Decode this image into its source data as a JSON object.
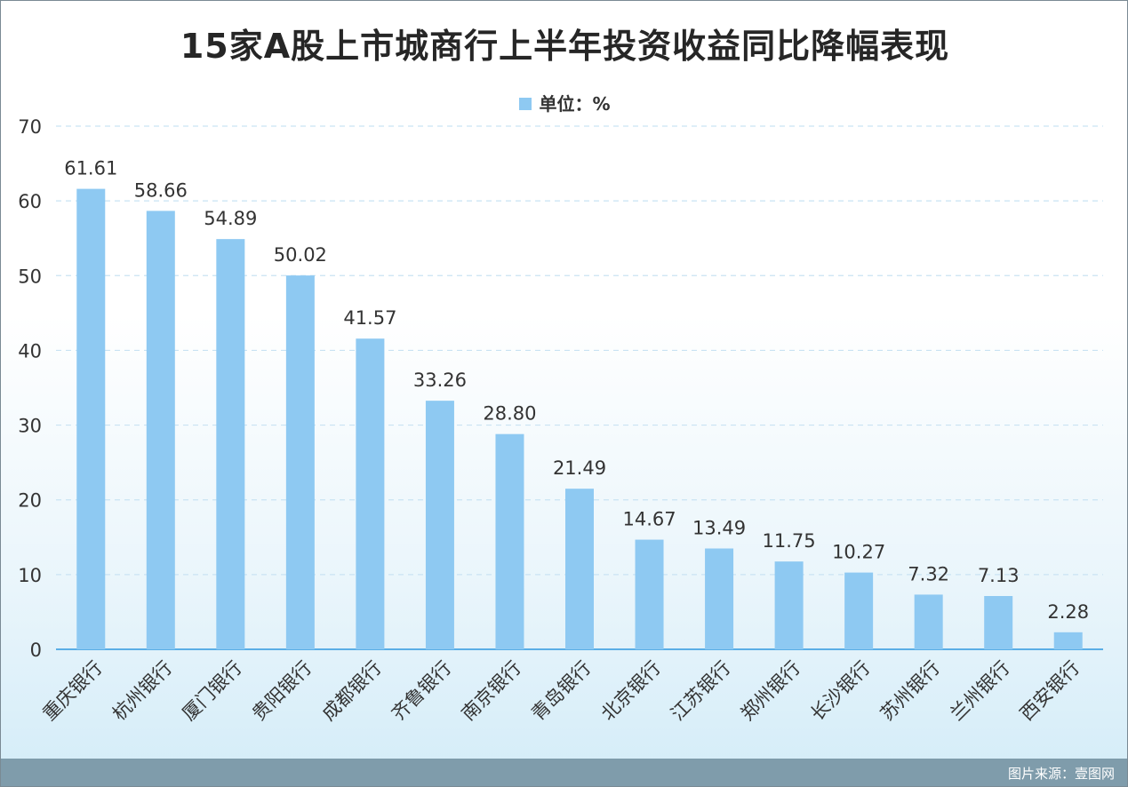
{
  "chart_data": {
    "type": "bar",
    "title": "15家A股上市城商行上半年投资收益同比降幅表现",
    "legend": "单位：%",
    "categories": [
      "重庆银行",
      "杭州银行",
      "厦门银行",
      "贵阳银行",
      "成都银行",
      "齐鲁银行",
      "南京银行",
      "青岛银行",
      "北京银行",
      "江苏银行",
      "郑州银行",
      "长沙银行",
      "苏州银行",
      "兰州银行",
      "西安银行"
    ],
    "values": [
      61.61,
      58.66,
      54.89,
      50.02,
      41.57,
      33.26,
      28.8,
      21.49,
      14.67,
      13.49,
      11.75,
      10.27,
      7.32,
      7.13,
      2.28
    ],
    "value_labels": [
      "61.61",
      "58.66",
      "54.89",
      "50.02",
      "41.57",
      "33.26",
      "28.80",
      "21.49",
      "14.67",
      "13.49",
      "11.75",
      "10.27",
      "7.32",
      "7.13",
      "2.28"
    ],
    "ylim": [
      0,
      70
    ],
    "yticks": [
      0,
      10,
      20,
      30,
      40,
      50,
      60,
      70
    ],
    "grid": true,
    "legend_position": "top-center",
    "bar_color": "#8ec9f2",
    "grid_color": "#c9e3f3",
    "axis_color": "#5aaee6"
  },
  "footer": {
    "source": "图片来源：壹图网"
  }
}
